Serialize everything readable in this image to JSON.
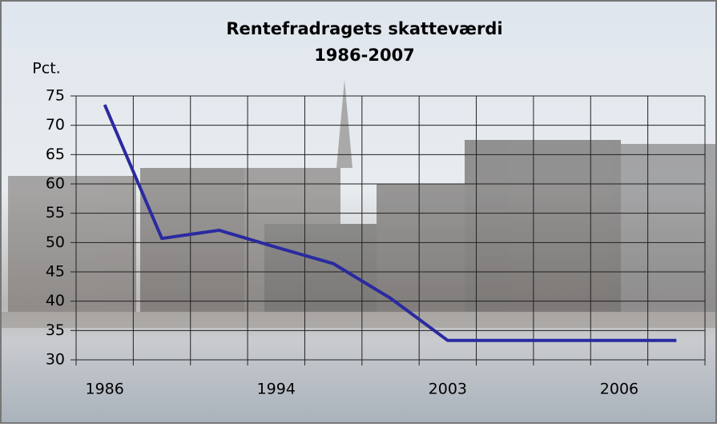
{
  "chart_data": {
    "type": "line",
    "title": "Rentefradragets skatteværdi",
    "subtitle": "1986-2007",
    "y_label": "Pct.",
    "categories": [
      "1986",
      null,
      null,
      "1994",
      null,
      null,
      "2003",
      null,
      null,
      "2006",
      null
    ],
    "series": [
      {
        "name": "Rentefradragets skatteværdi",
        "color": "#2a2aa0",
        "values": [
          73.5,
          50.7,
          52.1,
          49.2,
          46.4,
          40.5,
          33.3,
          33.3,
          33.3,
          33.3,
          33.3
        ]
      }
    ],
    "ylim": [
      30,
      75
    ],
    "yticks": [
      30,
      35,
      40,
      45,
      50,
      55,
      60,
      65,
      70,
      75
    ],
    "grid": true
  }
}
